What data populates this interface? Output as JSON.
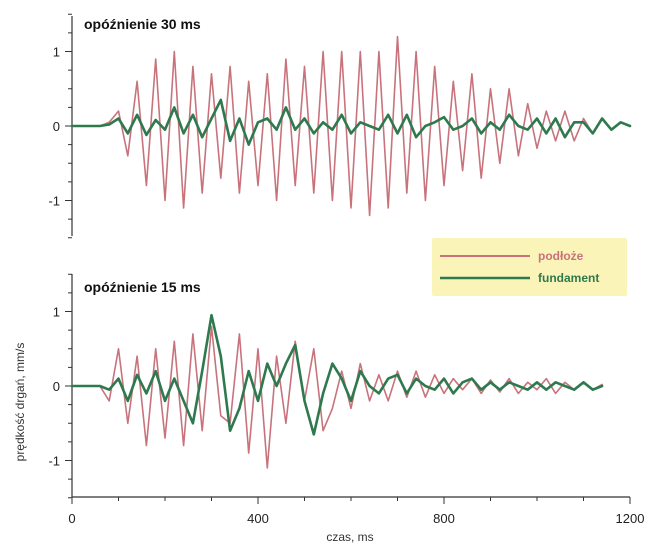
{
  "chart_data": [
    {
      "type": "line",
      "title": "opóźnienie 30 ms",
      "xlim": [
        0,
        1200
      ],
      "ylim": [
        -1.5,
        1.5
      ],
      "yticks": [
        -1,
        0,
        1
      ],
      "grid": false,
      "series": [
        {
          "name": "podłoże",
          "color": "#c8737c",
          "x": [
            0,
            60,
            80,
            100,
            120,
            140,
            160,
            180,
            200,
            220,
            240,
            260,
            280,
            300,
            320,
            340,
            360,
            380,
            400,
            420,
            440,
            460,
            480,
            500,
            520,
            540,
            560,
            580,
            600,
            620,
            640,
            660,
            680,
            700,
            720,
            740,
            760,
            780,
            800,
            820,
            840,
            860,
            880,
            900,
            920,
            940,
            960,
            980,
            1000,
            1020,
            1040,
            1060,
            1080,
            1100,
            1120,
            1140,
            1160,
            1180,
            1200
          ],
          "y": [
            0,
            0,
            0.05,
            0.2,
            -0.4,
            0.6,
            -0.8,
            0.9,
            -1.0,
            1.0,
            -1.1,
            0.8,
            -0.9,
            0.7,
            -0.7,
            0.8,
            -0.9,
            0.6,
            -0.8,
            0.7,
            -1.0,
            0.9,
            -0.8,
            0.8,
            -0.9,
            1.0,
            -1.0,
            1.0,
            -1.1,
            1.0,
            -1.2,
            1.0,
            -1.1,
            1.2,
            -0.9,
            1.0,
            -1.0,
            0.8,
            -0.8,
            0.6,
            -0.6,
            0.7,
            -0.7,
            0.5,
            -0.5,
            0.5,
            -0.4,
            0.3,
            -0.3,
            0.2,
            -0.2,
            0.2,
            -0.2,
            0.1,
            -0.1,
            0.1,
            -0.05,
            0.05,
            0
          ]
        },
        {
          "name": "fundament",
          "color": "#2e7a4e",
          "x": [
            0,
            60,
            80,
            100,
            120,
            140,
            160,
            180,
            200,
            220,
            240,
            260,
            280,
            300,
            320,
            340,
            360,
            380,
            400,
            420,
            440,
            460,
            480,
            500,
            520,
            540,
            560,
            580,
            600,
            620,
            640,
            660,
            680,
            700,
            720,
            740,
            760,
            780,
            800,
            820,
            840,
            860,
            880,
            900,
            920,
            940,
            960,
            980,
            1000,
            1020,
            1040,
            1060,
            1080,
            1100,
            1120,
            1140,
            1160,
            1180,
            1200
          ],
          "y": [
            0,
            0,
            0.02,
            0.1,
            -0.1,
            0.15,
            -0.12,
            0.08,
            -0.05,
            0.25,
            -0.1,
            0.15,
            -0.15,
            0.1,
            0.35,
            -0.2,
            0.1,
            -0.25,
            0.05,
            0.1,
            -0.05,
            0.25,
            -0.05,
            0.1,
            -0.1,
            0.05,
            -0.05,
            0.15,
            -0.1,
            0.05,
            0.0,
            -0.05,
            0.15,
            -0.1,
            0.15,
            -0.15,
            0.0,
            0.05,
            0.12,
            -0.05,
            0.0,
            0.1,
            -0.1,
            0.05,
            -0.05,
            0.15,
            0.0,
            -0.05,
            0.1,
            -0.1,
            0.1,
            -0.15,
            0.05,
            0.05,
            -0.1,
            0.1,
            -0.05,
            0.05,
            0
          ]
        }
      ]
    },
    {
      "type": "line",
      "title": "opóźnienie 15 ms",
      "xlabel": "czas, ms",
      "ylabel": "prędkość drgań, mm/s",
      "xlim": [
        0,
        1200
      ],
      "ylim": [
        -1.5,
        1.5
      ],
      "xticks": [
        0,
        400,
        800,
        1200
      ],
      "yticks": [
        -1,
        0,
        1
      ],
      "grid": false,
      "series": [
        {
          "name": "podłoże",
          "color": "#c8737c",
          "x": [
            0,
            60,
            80,
            100,
            120,
            140,
            160,
            180,
            200,
            220,
            240,
            260,
            280,
            300,
            320,
            340,
            360,
            380,
            400,
            420,
            440,
            460,
            480,
            500,
            520,
            540,
            560,
            580,
            600,
            620,
            640,
            660,
            680,
            700,
            720,
            740,
            760,
            780,
            800,
            820,
            840,
            860,
            880,
            900,
            920,
            940,
            960,
            980,
            1000,
            1020,
            1040,
            1060,
            1080,
            1100,
            1120,
            1140
          ],
          "y": [
            0,
            0,
            -0.2,
            0.5,
            -0.5,
            0.4,
            -0.8,
            0.5,
            -0.7,
            0.6,
            -0.8,
            0.7,
            -0.6,
            0.8,
            -0.4,
            -0.5,
            0.7,
            -0.9,
            0.5,
            -1.1,
            0.4,
            -0.5,
            0.6,
            -0.2,
            0.5,
            -0.6,
            -0.3,
            0.2,
            -0.3,
            0.3,
            -0.2,
            0.15,
            -0.2,
            0.2,
            -0.15,
            0.2,
            -0.15,
            0.15,
            -0.1,
            0.1,
            -0.05,
            0.1,
            -0.1,
            0.08,
            -0.08,
            0.1,
            -0.1,
            0.05,
            -0.05,
            0.1,
            -0.1,
            0.05,
            -0.05,
            0.05,
            -0.05,
            0.02
          ]
        },
        {
          "name": "fundament",
          "color": "#2e7a4e",
          "x": [
            0,
            60,
            80,
            100,
            120,
            140,
            160,
            180,
            200,
            220,
            240,
            260,
            280,
            300,
            320,
            340,
            360,
            380,
            400,
            420,
            440,
            460,
            480,
            500,
            520,
            540,
            560,
            580,
            600,
            620,
            640,
            660,
            680,
            700,
            720,
            740,
            760,
            780,
            800,
            820,
            840,
            860,
            880,
            900,
            920,
            940,
            960,
            980,
            1000,
            1020,
            1040,
            1060,
            1080,
            1100,
            1120,
            1140
          ],
          "y": [
            0,
            0,
            -0.05,
            0.1,
            -0.2,
            0.15,
            -0.1,
            0.2,
            -0.2,
            0.1,
            -0.2,
            -0.5,
            0.2,
            0.95,
            0.4,
            -0.6,
            -0.3,
            0.2,
            -0.2,
            0.3,
            0.0,
            0.3,
            0.55,
            -0.2,
            -0.65,
            -0.1,
            0.3,
            0.1,
            -0.2,
            0.2,
            0.0,
            -0.1,
            0.1,
            0.15,
            -0.1,
            0.1,
            0.0,
            -0.05,
            0.1,
            -0.1,
            0.05,
            0.1,
            -0.05,
            0.05,
            -0.05,
            0.05,
            0.0,
            -0.05,
            0.05,
            -0.05,
            0.05,
            0.0,
            -0.05,
            0.05,
            -0.05,
            0.0
          ]
        }
      ]
    }
  ],
  "legend": {
    "placement": "right",
    "background": "#fbf4b8",
    "items": [
      {
        "label": "podłoże",
        "color": "#c8737c"
      },
      {
        "label": "fundament",
        "color": "#2e7a4e"
      }
    ]
  }
}
